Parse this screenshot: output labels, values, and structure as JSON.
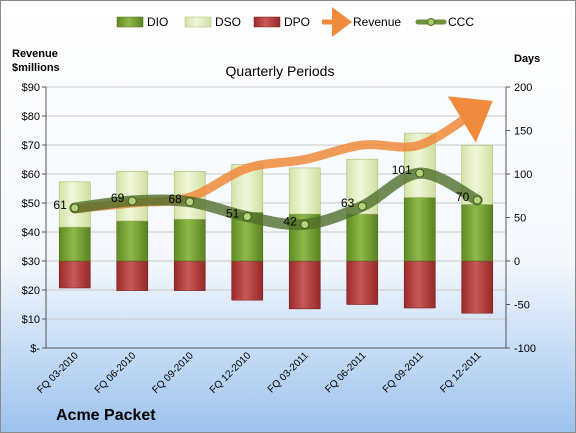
{
  "chart_data": {
    "type": "bar",
    "title": "Quarterly Periods",
    "company": "Acme Packet",
    "categories": [
      "FQ 03-2010",
      "FQ 06-2010",
      "FQ 09-2010",
      "FQ 12-2010",
      "FQ 03-2011",
      "FQ 06-2011",
      "FQ 09-2011",
      "FQ 12-2011"
    ],
    "y_left": {
      "label_line1": "Revenue",
      "label_line2": "$millions",
      "ticks": [
        "$-",
        "$10",
        "$20",
        "$30",
        "$40",
        "$50",
        "$60",
        "$70",
        "$80",
        "$90"
      ],
      "ylim": [
        0,
        90
      ]
    },
    "y_right": {
      "label": "Days",
      "ticks": [
        "-100",
        "-50",
        "0",
        "50",
        "100",
        "150",
        "200"
      ],
      "ylim": [
        -100,
        200
      ]
    },
    "series": [
      {
        "name": "DIO",
        "axis": "right",
        "values": [
          39,
          46,
          48,
          56,
          54,
          54,
          73,
          65
        ],
        "color": "#6f9a2e"
      },
      {
        "name": "DSO",
        "axis": "right",
        "values": [
          52,
          57,
          55,
          55,
          53,
          63,
          74,
          68
        ],
        "color": "#e8f2c4"
      },
      {
        "name": "DPO",
        "axis": "right",
        "values": [
          -31,
          -34,
          -34,
          -45,
          -55,
          -50,
          -54,
          -60
        ],
        "color": "#b03a3a"
      },
      {
        "name": "Revenue",
        "axis": "left",
        "values": [
          48,
          50,
          52,
          62,
          65,
          70,
          70,
          82
        ],
        "color": "#f08a3c"
      },
      {
        "name": "CCC",
        "axis": "right",
        "values": [
          61,
          69,
          68,
          51,
          42,
          63,
          101,
          70
        ],
        "color": "#6b8f3a"
      }
    ],
    "ccc_labels": [
      "61",
      "69",
      "68",
      "51",
      "42",
      "63",
      "101",
      "70"
    ],
    "legend_position": "top",
    "grid": true
  }
}
